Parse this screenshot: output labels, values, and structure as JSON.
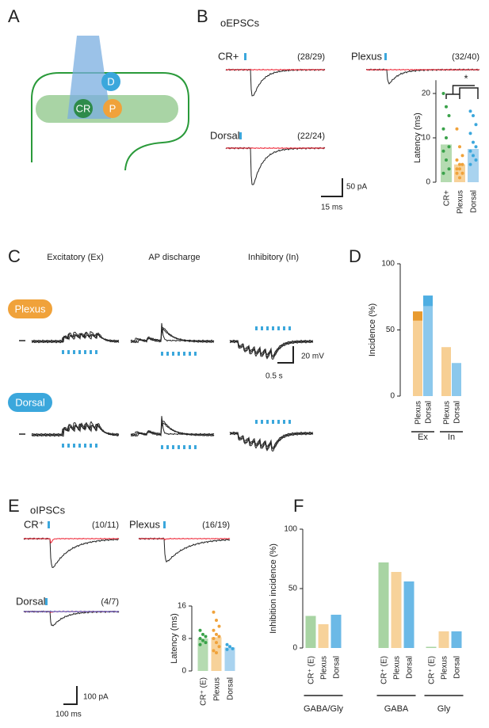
{
  "figure": {
    "panels": [
      "A",
      "B",
      "C",
      "D",
      "E",
      "F"
    ],
    "a": {
      "nodes": [
        "D",
        "CR",
        "P"
      ]
    },
    "b": {
      "title": "oEPSCs",
      "traces": [
        {
          "label": "CR+",
          "ratio": "(28/29)"
        },
        {
          "label": "Plexus",
          "ratio": "(32/40)"
        },
        {
          "label": "Dorsal",
          "ratio": "(22/24)"
        }
      ],
      "scale": [
        "50 pA",
        "15 ms"
      ]
    },
    "c": {
      "columns": [
        "Excitatory (Ex)",
        "AP discharge",
        "Inhibitory (In)"
      ],
      "rows": [
        "Plexus",
        "Dorsal"
      ],
      "scale": [
        "20 mV",
        "0.5 s"
      ]
    },
    "e": {
      "title": "oIPSCs",
      "traces": [
        {
          "label": "CR⁺",
          "ratio": "(10/11)"
        },
        {
          "label": "Plexus",
          "ratio": "(16/19)"
        },
        {
          "label": "Dorsal",
          "ratio": "(4/7)"
        }
      ],
      "scale": [
        "100 pA",
        "100 ms"
      ]
    }
  },
  "chart_data": [
    {
      "type": "bar",
      "y_label": "Latency (ms)",
      "categories": [
        "CR+",
        "Plexus",
        "Dorsal"
      ],
      "values": [
        8.5,
        4,
        7.5
      ],
      "colors": [
        "#b5dbb1",
        "#f7d29a",
        "#a9d3ef"
      ],
      "point_colors": [
        "#3aa24a",
        "#f0a23a",
        "#3ba7dc"
      ],
      "points": [
        [
          20,
          17,
          15,
          12,
          10,
          8,
          7,
          5,
          3,
          2
        ],
        [
          12,
          8,
          6,
          5,
          4,
          4,
          3,
          3,
          2,
          2,
          1
        ],
        [
          16,
          15,
          13,
          11,
          9,
          8,
          7,
          6,
          5,
          4
        ]
      ],
      "ylim": [
        0,
        23
      ],
      "yticks": [
        0,
        10,
        20
      ],
      "annotation": "*"
    },
    {
      "type": "stacked_bar",
      "y_label": "Incidence (%)",
      "categories": [
        "Plexus",
        "Dorsal",
        "Plexus",
        "Dorsal"
      ],
      "groups": [
        "Ex",
        "In"
      ],
      "series": [
        {
          "colors": [
            "#f7cf94",
            "#8cc8ec",
            "#f7cf94",
            "#8cc8ec"
          ],
          "values": [
            57,
            68,
            37,
            25
          ]
        },
        {
          "colors": [
            "#e89a2e",
            "#4eaee2",
            "#e89a2e",
            "#4eaee2"
          ],
          "values": [
            7,
            8,
            null,
            null
          ]
        }
      ],
      "ylim": [
        0,
        100
      ],
      "yticks": [
        0,
        50,
        100
      ]
    },
    {
      "type": "bar",
      "y_label": "Latency (ms)",
      "categories": [
        "CR⁺ (E)",
        "Plexus",
        "Dorsal"
      ],
      "values": [
        8,
        8.3,
        5.8
      ],
      "colors": [
        "#b5dbb1",
        "#f7d29a",
        "#a9d3ef"
      ],
      "point_colors": [
        "#3aa24a",
        "#f0a23a",
        "#3ba7dc"
      ],
      "points": [
        [
          10,
          9,
          8.5,
          8,
          7.5,
          7,
          6.5
        ],
        [
          14.5,
          12.5,
          11,
          10,
          9,
          8.5,
          8,
          7,
          6,
          5,
          4.5
        ],
        [
          6.5,
          6,
          5.5,
          5.3
        ]
      ],
      "ylim": [
        0,
        16
      ],
      "yticks": [
        0,
        8,
        16
      ]
    },
    {
      "type": "bar",
      "y_label": "Inhibition incidence (%)",
      "categories": [
        "CR⁺ (E)",
        "Plexus",
        "Dorsal",
        "CR⁺ (E)",
        "Plexus",
        "Dorsal",
        "CR⁺ (E)",
        "Plexus",
        "Dorsal"
      ],
      "groups": [
        "GABA/Gly",
        "GABA",
        "Gly"
      ],
      "values": [
        27,
        20,
        28,
        72,
        64,
        56,
        1,
        14,
        14
      ],
      "colors": [
        "#a8d4a3",
        "#f7d29a",
        "#6bb9e6",
        "#a8d4a3",
        "#f7d29a",
        "#6bb9e6",
        "#a8d4a3",
        "#f7d29a",
        "#6bb9e6"
      ],
      "ylim": [
        0,
        100
      ],
      "yticks": [
        0,
        50,
        100
      ]
    }
  ]
}
